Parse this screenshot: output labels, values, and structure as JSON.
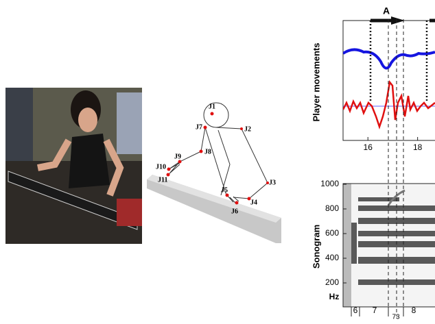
{
  "skeleton": {
    "joints": [
      "J1",
      "J2",
      "J3",
      "J4",
      "J5",
      "J6",
      "J7",
      "J8",
      "J9",
      "J10",
      "J11"
    ]
  },
  "movement_plot": {
    "segment_label": "A",
    "ylabel": "Player movements",
    "xlim": [
      15,
      18.7
    ],
    "xticks": [
      16,
      18
    ]
  },
  "sonogram": {
    "ylabel": "Sonogram",
    "unit": "Hz",
    "ylim": [
      0,
      1000
    ],
    "yticks": [
      200,
      400,
      600,
      800,
      1000
    ],
    "segments": [
      "6",
      "7",
      "73",
      "8"
    ]
  }
}
